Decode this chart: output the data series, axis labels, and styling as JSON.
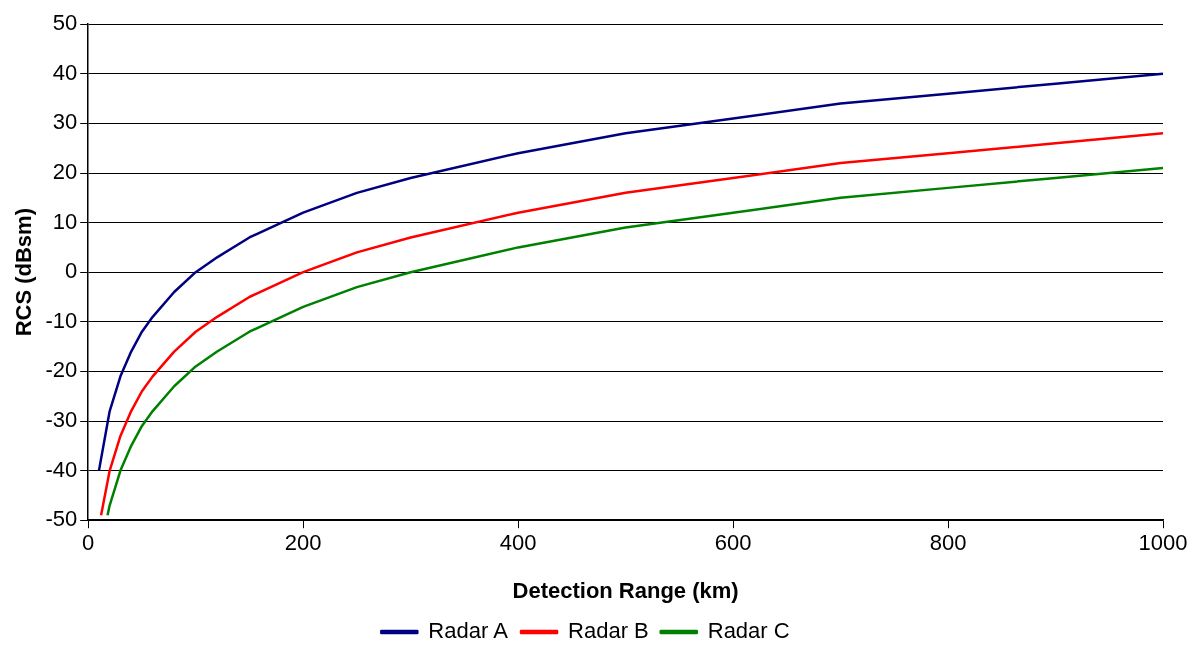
{
  "chart_data": {
    "type": "line",
    "xlabel": "Detection Range (km)",
    "ylabel": "RCS (dBsm)",
    "xlim": [
      0,
      1000
    ],
    "xticks": [
      0,
      200,
      400,
      600,
      800,
      1000
    ],
    "ylim": [
      -50,
      50
    ],
    "yticks": [
      -50,
      -40,
      -30,
      -20,
      -10,
      0,
      10,
      20,
      30,
      40,
      50
    ],
    "grid": "y",
    "legend": "bottom",
    "marker": "none",
    "line_style": "solid",
    "series": [
      {
        "name": "Radar A",
        "color": "#000080",
        "x": [
          10,
          20,
          30,
          40,
          50,
          60,
          80,
          100,
          120,
          150,
          200,
          250,
          300,
          400,
          500,
          600,
          700,
          800,
          900,
          1000
        ],
        "values": [
          -40,
          -28,
          -21,
          -16,
          -12,
          -9,
          -4,
          0,
          3,
          7,
          12,
          16,
          19,
          24,
          28,
          31,
          34,
          36,
          38,
          40
        ]
      },
      {
        "name": "Radar B",
        "color": "#ff0000",
        "x": [
          12,
          20,
          30,
          40,
          50,
          60,
          80,
          100,
          120,
          150,
          200,
          250,
          300,
          400,
          500,
          600,
          700,
          800,
          900,
          1000
        ],
        "values": [
          -49,
          -40,
          -33,
          -28,
          -24,
          -21,
          -16,
          -12,
          -9,
          -5,
          0,
          4,
          7,
          12,
          16,
          19,
          22,
          24,
          26,
          28
        ]
      },
      {
        "name": "Radar C",
        "color": "#008000",
        "x": [
          18,
          20,
          30,
          40,
          50,
          60,
          80,
          100,
          120,
          150,
          200,
          250,
          300,
          400,
          500,
          600,
          700,
          800,
          900,
          1000
        ],
        "values": [
          -49,
          -47,
          -40,
          -35,
          -31,
          -28,
          -23,
          -19,
          -16,
          -12,
          -7,
          -3,
          0,
          5,
          9,
          12,
          15,
          17,
          19,
          21
        ]
      }
    ]
  }
}
